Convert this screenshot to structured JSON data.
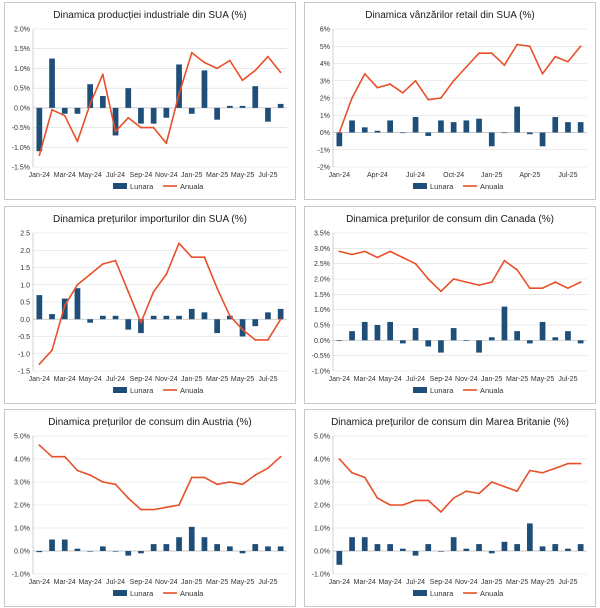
{
  "colors": {
    "bar": "#1f4e79",
    "line": "#e8502a",
    "grid": "#d9d9d9",
    "axis": "#bfbfbf"
  },
  "legend": {
    "bar_label": "Lunara",
    "line_label": "Anuala"
  },
  "chart_data": [
    {
      "type": "bar+line",
      "title": "Dinamica producției industriale din SUA (%)",
      "months": [
        "Jan-24",
        "Feb-24",
        "Mar-24",
        "Apr-24",
        "May-24",
        "Jun-24",
        "Jul-24",
        "Aug-24",
        "Sep-24",
        "Oct-24",
        "Nov-24",
        "Dec-24",
        "Jan-25",
        "Feb-25",
        "Mar-25",
        "Apr-25",
        "May-25",
        "Jun-25",
        "Jul-25",
        "Aug-25"
      ],
      "x_tick_labels": [
        "Jan-24",
        "",
        "Mar-24",
        "",
        "May-24",
        "",
        "Jul-24",
        "",
        "Sep-24",
        "",
        "Nov-24",
        "",
        "Jan-25",
        "",
        "Mar-25",
        "",
        "May-25",
        "",
        "Jul-25",
        ""
      ],
      "ylim": [
        -1.5,
        2.0
      ],
      "ytick_step": 0.5,
      "ytick_decimals": 1,
      "ytick_suffix": "%",
      "series": [
        {
          "name": "Lunara",
          "kind": "bar",
          "values": [
            -1.1,
            1.25,
            -0.15,
            -0.15,
            0.6,
            0.3,
            -0.7,
            0.5,
            -0.4,
            -0.4,
            -0.25,
            1.1,
            -0.15,
            0.95,
            -0.3,
            0.05,
            0.05,
            0.55,
            -0.35,
            0.1
          ]
        },
        {
          "name": "Anuala",
          "kind": "line",
          "values": [
            -1.2,
            -0.05,
            -0.2,
            -0.85,
            0.1,
            0.85,
            -0.6,
            -0.25,
            -0.5,
            -0.5,
            -0.9,
            0.35,
            1.4,
            1.15,
            1.0,
            1.2,
            0.7,
            0.95,
            1.3,
            0.9
          ]
        }
      ]
    },
    {
      "type": "bar+line",
      "title": "Dinamica vânzărilor retail din SUA (%)",
      "months": [
        "Jan-24",
        "Feb-24",
        "Mar-24",
        "Apr-24",
        "May-24",
        "Jun-24",
        "Jul-24",
        "Aug-24",
        "Sep-24",
        "Oct-24",
        "Nov-24",
        "Dec-24",
        "Jan-25",
        "Feb-25",
        "Mar-25",
        "Apr-25",
        "May-25",
        "Jun-25",
        "Jul-25",
        "Aug-25"
      ],
      "x_tick_labels": [
        "Jan-24",
        "",
        "",
        "Apr-24",
        "",
        "",
        "Jul-24",
        "",
        "",
        "Oct-24",
        "",
        "",
        "Jan-25",
        "",
        "",
        "Apr-25",
        "",
        "",
        "Jul-25",
        ""
      ],
      "ylim": [
        -2,
        6
      ],
      "ytick_step": 1,
      "ytick_decimals": 0,
      "ytick_suffix": "%",
      "series": [
        {
          "name": "Lunara",
          "kind": "bar",
          "values": [
            -0.8,
            0.7,
            0.3,
            0.1,
            0.7,
            0.0,
            0.9,
            -0.2,
            0.7,
            0.6,
            0.7,
            0.8,
            -0.8,
            0.0,
            1.5,
            -0.1,
            -0.8,
            0.9,
            0.6,
            0.6
          ]
        },
        {
          "name": "Anuala",
          "kind": "line",
          "values": [
            0.0,
            2.0,
            3.4,
            2.6,
            2.8,
            2.3,
            3.0,
            1.9,
            2.0,
            3.0,
            3.8,
            4.6,
            4.6,
            3.9,
            5.1,
            5.0,
            3.4,
            4.4,
            4.1,
            5.0
          ]
        }
      ]
    },
    {
      "type": "bar+line",
      "title": "Dinamica prețurilor importurilor din SUA (%)",
      "months": [
        "Jan-24",
        "Feb-24",
        "Mar-24",
        "Apr-24",
        "May-24",
        "Jun-24",
        "Jul-24",
        "Aug-24",
        "Sep-24",
        "Oct-24",
        "Nov-24",
        "Dec-24",
        "Jan-25",
        "Feb-25",
        "Mar-25",
        "Apr-25",
        "May-25",
        "Jun-25",
        "Jul-25",
        "Aug-25"
      ],
      "x_tick_labels": [
        "Jan-24",
        "",
        "Mar-24",
        "",
        "May-24",
        "",
        "Jul-24",
        "",
        "Sep-24",
        "",
        "Nov-24",
        "",
        "Jan-25",
        "",
        "Mar-25",
        "",
        "May-25",
        "",
        "Jul-25",
        ""
      ],
      "ylim": [
        -1.5,
        2.5
      ],
      "ytick_step": 0.5,
      "ytick_decimals": 1,
      "ytick_suffix": "",
      "series": [
        {
          "name": "Lunara",
          "kind": "bar",
          "values": [
            0.7,
            0.15,
            0.6,
            0.9,
            -0.1,
            0.1,
            0.1,
            -0.3,
            -0.4,
            0.1,
            0.1,
            0.1,
            0.3,
            0.2,
            -0.4,
            0.1,
            -0.5,
            -0.2,
            0.2,
            0.3
          ]
        },
        {
          "name": "Anuala",
          "kind": "line",
          "values": [
            -1.3,
            -0.9,
            0.4,
            1.0,
            1.3,
            1.6,
            1.7,
            0.8,
            -0.1,
            0.8,
            1.3,
            2.2,
            1.8,
            1.8,
            0.9,
            0.1,
            -0.3,
            -0.6,
            -0.6,
            0.0
          ]
        }
      ]
    },
    {
      "type": "bar+line",
      "title": "Dinamica prețurilor de consum din Canada (%)",
      "months": [
        "Jan-24",
        "Feb-24",
        "Mar-24",
        "Apr-24",
        "May-24",
        "Jun-24",
        "Jul-24",
        "Aug-24",
        "Sep-24",
        "Oct-24",
        "Nov-24",
        "Dec-24",
        "Jan-25",
        "Feb-25",
        "Mar-25",
        "Apr-25",
        "May-25",
        "Jun-25",
        "Jul-25",
        "Aug-25"
      ],
      "x_tick_labels": [
        "Jan-24",
        "",
        "Mar-24",
        "",
        "May-24",
        "",
        "Jul-24",
        "",
        "Sep-24",
        "",
        "Nov-24",
        "",
        "Jan-25",
        "",
        "Mar-25",
        "",
        "May-25",
        "",
        "Jul-25",
        ""
      ],
      "ylim": [
        -1.0,
        3.5
      ],
      "ytick_step": 0.5,
      "ytick_decimals": 1,
      "ytick_suffix": "%",
      "series": [
        {
          "name": "Lunara",
          "kind": "bar",
          "values": [
            0.0,
            0.3,
            0.6,
            0.5,
            0.6,
            -0.1,
            0.4,
            -0.2,
            -0.4,
            0.4,
            0.0,
            -0.4,
            0.1,
            1.1,
            0.3,
            -0.1,
            0.6,
            0.1,
            0.3,
            -0.1
          ]
        },
        {
          "name": "Anuala",
          "kind": "line",
          "values": [
            2.9,
            2.8,
            2.9,
            2.7,
            2.9,
            2.7,
            2.5,
            2.0,
            1.6,
            2.0,
            1.9,
            1.8,
            1.9,
            2.6,
            2.3,
            1.7,
            1.7,
            1.9,
            1.7,
            1.9
          ]
        }
      ]
    },
    {
      "type": "bar+line",
      "title": "Dinamica prețurilor de consum din Austria (%)",
      "months": [
        "Jan-24",
        "Feb-24",
        "Mar-24",
        "Apr-24",
        "May-24",
        "Jun-24",
        "Jul-24",
        "Aug-24",
        "Sep-24",
        "Oct-24",
        "Nov-24",
        "Dec-24",
        "Jan-25",
        "Feb-25",
        "Mar-25",
        "Apr-25",
        "May-25",
        "Jun-25",
        "Jul-25",
        "Aug-25"
      ],
      "x_tick_labels": [
        "Jan-24",
        "",
        "Mar-24",
        "",
        "May-24",
        "",
        "Jul-24",
        "",
        "Sep-24",
        "",
        "Nov-24",
        "",
        "Jan-25",
        "",
        "Mar-25",
        "",
        "May-25",
        "",
        "Jul-25",
        ""
      ],
      "ylim": [
        -1.0,
        5.0
      ],
      "ytick_step": 1,
      "ytick_decimals": 1,
      "ytick_suffix": "%",
      "series": [
        {
          "name": "Lunara",
          "kind": "bar",
          "values": [
            -0.05,
            0.5,
            0.5,
            0.1,
            0.0,
            0.2,
            0.0,
            -0.2,
            -0.1,
            0.3,
            0.3,
            0.6,
            1.05,
            0.6,
            0.3,
            0.2,
            -0.1,
            0.3,
            0.2,
            0.2
          ]
        },
        {
          "name": "Anuala",
          "kind": "line",
          "values": [
            4.6,
            4.1,
            4.1,
            3.5,
            3.3,
            3.0,
            2.9,
            2.3,
            1.8,
            1.8,
            1.9,
            2.0,
            3.2,
            3.2,
            2.9,
            3.0,
            2.9,
            3.3,
            3.6,
            4.1
          ]
        }
      ]
    },
    {
      "type": "bar+line",
      "title": "Dinamica prețurilor de consum din Marea Britanie (%)",
      "months": [
        "Jan-24",
        "Feb-24",
        "Mar-24",
        "Apr-24",
        "May-24",
        "Jun-24",
        "Jul-24",
        "Aug-24",
        "Sep-24",
        "Oct-24",
        "Nov-24",
        "Dec-24",
        "Jan-25",
        "Feb-25",
        "Mar-25",
        "Apr-25",
        "May-25",
        "Jun-25",
        "Jul-25",
        "Aug-25"
      ],
      "x_tick_labels": [
        "Jan-24",
        "",
        "Mar-24",
        "",
        "May-24",
        "",
        "Jul-24",
        "",
        "Sep-24",
        "",
        "Nov-24",
        "",
        "Jan-25",
        "",
        "Mar-25",
        "",
        "May-25",
        "",
        "Jul-25",
        ""
      ],
      "ylim": [
        -1.0,
        5.0
      ],
      "ytick_step": 1,
      "ytick_decimals": 1,
      "ytick_suffix": "%",
      "series": [
        {
          "name": "Lunara",
          "kind": "bar",
          "values": [
            -0.6,
            0.6,
            0.6,
            0.3,
            0.3,
            0.1,
            -0.2,
            0.3,
            0.0,
            0.6,
            0.1,
            0.3,
            -0.1,
            0.4,
            0.3,
            1.2,
            0.2,
            0.3,
            0.1,
            0.3
          ]
        },
        {
          "name": "Anuala",
          "kind": "line",
          "values": [
            4.0,
            3.4,
            3.2,
            2.3,
            2.0,
            2.0,
            2.2,
            2.2,
            1.7,
            2.3,
            2.6,
            2.5,
            3.0,
            2.8,
            2.6,
            3.5,
            3.4,
            3.6,
            3.8,
            3.8
          ]
        }
      ]
    }
  ]
}
